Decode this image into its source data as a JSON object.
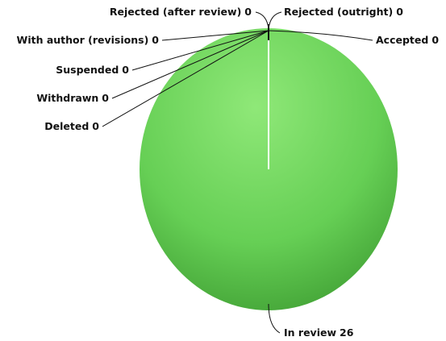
{
  "chart_data": {
    "type": "pie",
    "categories": [
      "In review",
      "Accepted",
      "Rejected (outright)",
      "Rejected (after review)",
      "With author (revisions)",
      "Suspended",
      "Withdrawn",
      "Deleted"
    ],
    "values": [
      26,
      0,
      0,
      0,
      0,
      0,
      0,
      0
    ],
    "color": "#5cc84f"
  }
}
